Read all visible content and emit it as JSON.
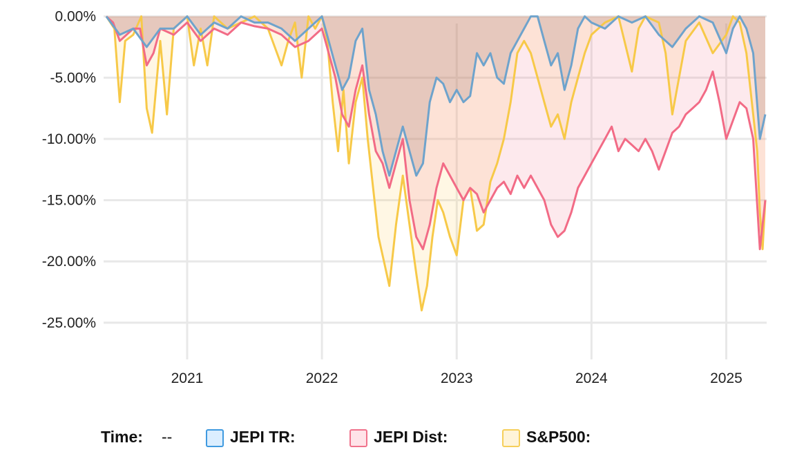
{
  "chart_data": {
    "type": "area",
    "title": "",
    "xlabel": "",
    "ylabel": "",
    "x_ticks": [
      "2021",
      "2022",
      "2023",
      "2024",
      "2025"
    ],
    "y_ticks": [
      "0.00%",
      "-5.00%",
      "-10.00%",
      "-15.00%",
      "-20.00%",
      "-25.00%"
    ],
    "xlim": [
      2020.38,
      2025.3
    ],
    "ylim": [
      -28.0,
      1.0
    ],
    "grid": true,
    "legend_position": "bottom",
    "series": [
      {
        "name": "S&P500",
        "color": "#f7c948",
        "fill": "rgba(252,200,72,0.15)",
        "x": [
          2020.4,
          2020.46,
          2020.5,
          2020.54,
          2020.6,
          2020.66,
          2020.7,
          2020.74,
          2020.8,
          2020.85,
          2020.9,
          2020.95,
          2021.0,
          2021.05,
          2021.1,
          2021.15,
          2021.2,
          2021.3,
          2021.4,
          2021.5,
          2021.6,
          2021.7,
          2021.75,
          2021.8,
          2021.85,
          2021.9,
          2021.95,
          2022.0,
          2022.04,
          2022.08,
          2022.12,
          2022.16,
          2022.2,
          2022.25,
          2022.3,
          2022.34,
          2022.38,
          2022.42,
          2022.46,
          2022.5,
          2022.55,
          2022.6,
          2022.65,
          2022.7,
          2022.74,
          2022.78,
          2022.82,
          2022.86,
          2022.9,
          2022.95,
          2023.0,
          2023.05,
          2023.1,
          2023.15,
          2023.2,
          2023.25,
          2023.3,
          2023.35,
          2023.4,
          2023.45,
          2023.5,
          2023.55,
          2023.6,
          2023.65,
          2023.7,
          2023.75,
          2023.8,
          2023.85,
          2023.9,
          2023.95,
          2024.0,
          2024.1,
          2024.2,
          2024.3,
          2024.35,
          2024.4,
          2024.5,
          2024.55,
          2024.6,
          2024.7,
          2024.8,
          2024.9,
          2025.0,
          2025.05,
          2025.1,
          2025.15,
          2025.18,
          2025.2,
          2025.23,
          2025.25,
          2025.27,
          2025.29
        ],
        "values": [
          0.0,
          -1.0,
          -7.0,
          -2.0,
          -1.5,
          0.0,
          -7.5,
          -9.5,
          -2.0,
          -8.0,
          -1.0,
          -0.5,
          0.0,
          -4.0,
          -1.0,
          -4.0,
          0.0,
          -1.0,
          -0.5,
          0.0,
          -1.0,
          -4.0,
          -2.0,
          -0.5,
          -5.0,
          0.0,
          -1.0,
          0.0,
          -2.0,
          -7.0,
          -11.0,
          -6.0,
          -12.0,
          -7.0,
          -5.0,
          -10.0,
          -14.0,
          -18.0,
          -20.0,
          -22.0,
          -17.0,
          -13.0,
          -17.0,
          -21.0,
          -24.0,
          -22.0,
          -18.0,
          -15.0,
          -16.0,
          -18.0,
          -19.5,
          -15.0,
          -14.0,
          -17.5,
          -17.0,
          -13.5,
          -12.0,
          -10.0,
          -7.0,
          -3.0,
          -2.0,
          -3.0,
          -5.0,
          -7.0,
          -9.0,
          -8.0,
          -10.0,
          -7.0,
          -5.0,
          -3.0,
          -1.5,
          -0.5,
          0.0,
          -4.5,
          -1.0,
          0.0,
          -0.5,
          -3.0,
          -8.0,
          -2.0,
          -0.5,
          -3.0,
          -1.5,
          0.0,
          -0.5,
          -3.0,
          -6.0,
          -8.0,
          -11.0,
          -16.0,
          -19.0,
          -15.0
        ]
      },
      {
        "name": "JEPI Dist",
        "color": "#f26b86",
        "fill": "rgba(242,107,134,0.15)",
        "x": [
          2020.4,
          2020.45,
          2020.5,
          2020.55,
          2020.6,
          2020.65,
          2020.7,
          2020.75,
          2020.8,
          2020.9,
          2021.0,
          2021.1,
          2021.2,
          2021.3,
          2021.4,
          2021.5,
          2021.6,
          2021.7,
          2021.8,
          2021.9,
          2022.0,
          2022.05,
          2022.1,
          2022.15,
          2022.2,
          2022.25,
          2022.3,
          2022.35,
          2022.4,
          2022.45,
          2022.5,
          2022.55,
          2022.6,
          2022.65,
          2022.7,
          2022.75,
          2022.8,
          2022.85,
          2022.9,
          2022.95,
          2023.0,
          2023.05,
          2023.1,
          2023.15,
          2023.2,
          2023.25,
          2023.3,
          2023.35,
          2023.4,
          2023.45,
          2023.5,
          2023.55,
          2023.6,
          2023.65,
          2023.7,
          2023.75,
          2023.8,
          2023.85,
          2023.9,
          2023.95,
          2024.0,
          2024.05,
          2024.1,
          2024.15,
          2024.2,
          2024.25,
          2024.3,
          2024.35,
          2024.4,
          2024.45,
          2024.5,
          2024.55,
          2024.6,
          2024.65,
          2024.7,
          2024.75,
          2024.8,
          2024.85,
          2024.9,
          2024.95,
          2025.0,
          2025.05,
          2025.1,
          2025.15,
          2025.2,
          2025.25,
          2025.29
        ],
        "values": [
          0.0,
          -0.5,
          -2.0,
          -1.5,
          -1.0,
          -1.0,
          -4.0,
          -3.0,
          -1.0,
          -1.5,
          -0.5,
          -2.0,
          -1.0,
          -1.5,
          -0.5,
          -0.8,
          -1.0,
          -1.5,
          -2.5,
          -2.0,
          -1.0,
          -3.0,
          -5.0,
          -8.0,
          -9.0,
          -6.0,
          -4.0,
          -8.0,
          -11.0,
          -12.0,
          -14.0,
          -12.0,
          -10.0,
          -15.0,
          -18.0,
          -19.0,
          -17.0,
          -14.0,
          -12.0,
          -13.0,
          -14.0,
          -15.0,
          -14.0,
          -14.5,
          -16.0,
          -15.0,
          -14.0,
          -13.5,
          -14.5,
          -13.0,
          -14.0,
          -13.0,
          -14.0,
          -15.0,
          -17.0,
          -18.0,
          -17.5,
          -16.0,
          -14.0,
          -13.0,
          -12.0,
          -11.0,
          -10.0,
          -9.0,
          -11.0,
          -10.0,
          -10.5,
          -11.0,
          -10.0,
          -11.0,
          -12.5,
          -11.0,
          -9.5,
          -9.0,
          -8.0,
          -7.5,
          -7.0,
          -6.0,
          -4.5,
          -7.0,
          -10.0,
          -8.5,
          -7.0,
          -7.5,
          -10.0,
          -19.0,
          -15.0
        ]
      },
      {
        "name": "JEPI TR",
        "color": "#6ea3cc",
        "fill": "rgba(150,110,100,0.22)",
        "x": [
          2020.4,
          2020.5,
          2020.6,
          2020.7,
          2020.8,
          2020.9,
          2021.0,
          2021.1,
          2021.2,
          2021.3,
          2021.4,
          2021.5,
          2021.6,
          2021.7,
          2021.8,
          2021.9,
          2022.0,
          2022.05,
          2022.1,
          2022.15,
          2022.2,
          2022.25,
          2022.3,
          2022.35,
          2022.4,
          2022.45,
          2022.5,
          2022.55,
          2022.6,
          2022.65,
          2022.7,
          2022.75,
          2022.8,
          2022.85,
          2022.9,
          2022.95,
          2023.0,
          2023.05,
          2023.1,
          2023.15,
          2023.2,
          2023.25,
          2023.3,
          2023.35,
          2023.4,
          2023.45,
          2023.5,
          2023.55,
          2023.6,
          2023.65,
          2023.7,
          2023.75,
          2023.8,
          2023.85,
          2023.9,
          2023.95,
          2024.0,
          2024.1,
          2024.2,
          2024.3,
          2024.4,
          2024.5,
          2024.6,
          2024.7,
          2024.8,
          2024.9,
          2025.0,
          2025.05,
          2025.1,
          2025.15,
          2025.2,
          2025.25,
          2025.29
        ],
        "values": [
          0.0,
          -1.5,
          -1.0,
          -2.5,
          -1.0,
          -1.0,
          0.0,
          -1.5,
          -0.5,
          -1.0,
          0.0,
          -0.5,
          -0.5,
          -1.0,
          -2.0,
          -1.0,
          0.0,
          -2.0,
          -4.0,
          -6.0,
          -5.0,
          -2.0,
          -1.0,
          -6.0,
          -8.0,
          -11.0,
          -13.0,
          -11.0,
          -9.0,
          -11.0,
          -13.0,
          -12.0,
          -7.0,
          -5.0,
          -5.5,
          -7.0,
          -6.0,
          -7.0,
          -6.5,
          -3.0,
          -4.0,
          -3.0,
          -5.0,
          -5.5,
          -3.0,
          -2.0,
          -1.0,
          0.0,
          0.0,
          -2.0,
          -4.0,
          -3.0,
          -6.0,
          -4.0,
          -1.0,
          0.0,
          -0.5,
          -1.0,
          0.0,
          -0.5,
          0.0,
          -1.5,
          -2.5,
          -1.0,
          0.0,
          -0.5,
          -3.0,
          -1.0,
          0.0,
          -1.0,
          -3.0,
          -10.0,
          -8.0
        ]
      }
    ]
  },
  "legend": {
    "time_label": "Time:",
    "time_value": "--",
    "items": [
      {
        "label": "JEPI TR:",
        "border": "#3f9ae0",
        "bg": "#dbeeff"
      },
      {
        "label": "JEPI Dist:",
        "border": "#f0728b",
        "bg": "#ffe3e8"
      },
      {
        "label": "S&P500:",
        "border": "#f6cf5a",
        "bg": "#fff4d9"
      }
    ]
  }
}
